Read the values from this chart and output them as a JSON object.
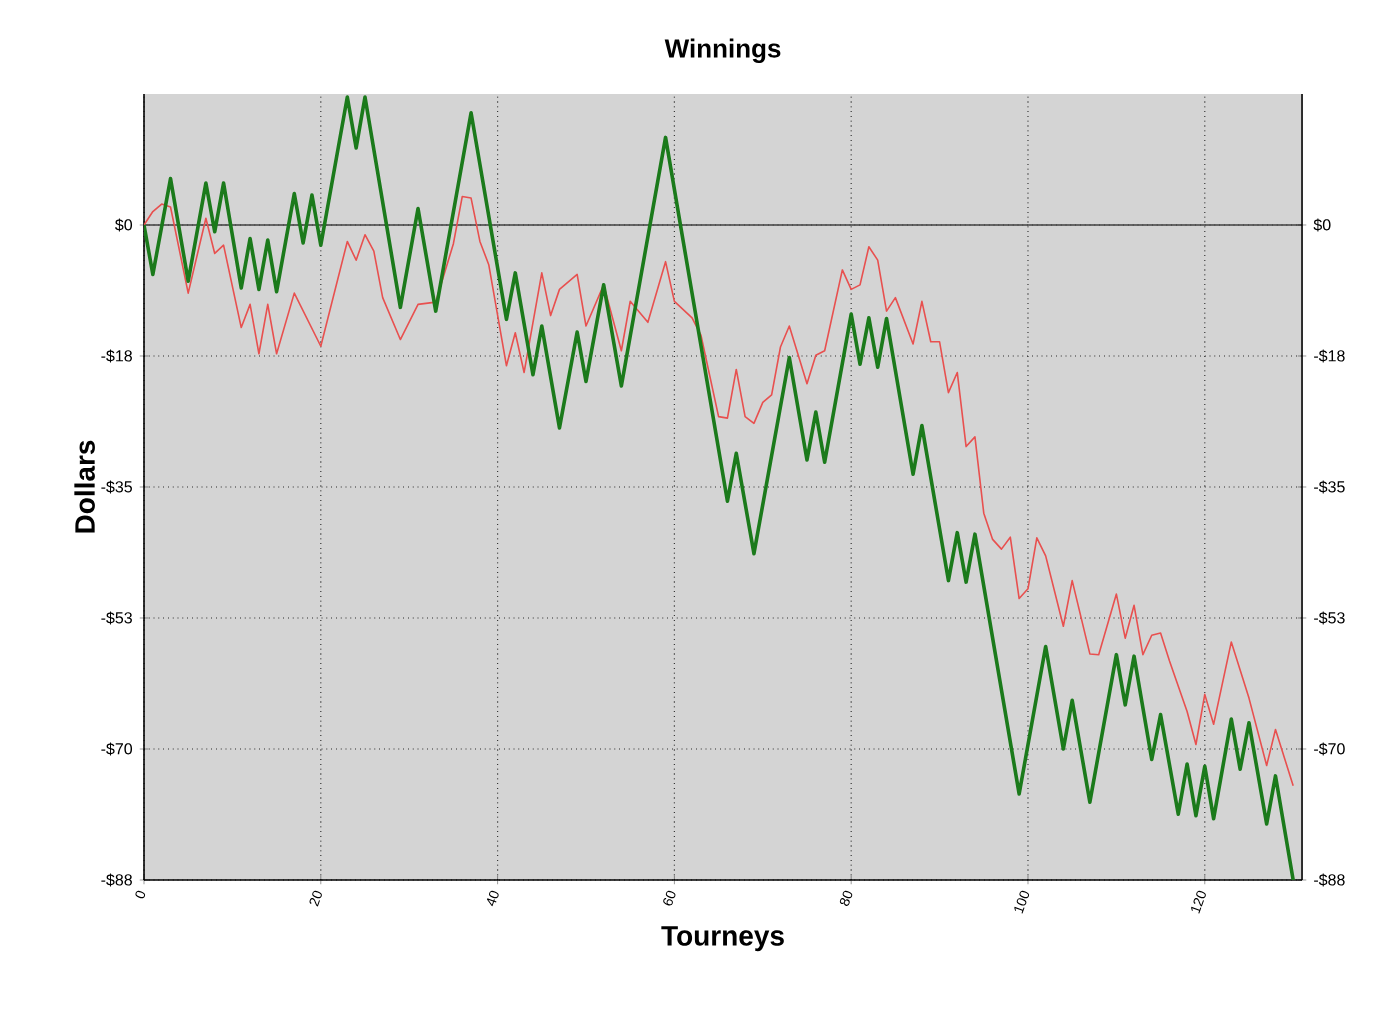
{
  "chart_data": {
    "type": "line",
    "title": "Winnings",
    "xlabel": "Tourneys",
    "ylabel": "Dollars",
    "xlim": [
      0,
      131
    ],
    "xticks": [
      0,
      20,
      40,
      60,
      80,
      100,
      120
    ],
    "ylim": [
      -87.5,
      17.5
    ],
    "yticks": [
      {
        "value": -87.5,
        "label": "-$88"
      },
      {
        "value": -70,
        "label": "-$70"
      },
      {
        "value": -52.5,
        "label": "-$53"
      },
      {
        "value": -35,
        "label": "-$35"
      },
      {
        "value": -17.5,
        "label": "-$18"
      },
      {
        "value": 0,
        "label": "$0"
      }
    ],
    "y2lim": [
      -87.5,
      17.5
    ],
    "y2ticks": [
      {
        "value": -87.5,
        "label": "-$88"
      },
      {
        "value": -70,
        "label": "-$70"
      },
      {
        "value": -52.5,
        "label": "-$53"
      },
      {
        "value": -35,
        "label": "-$35"
      },
      {
        "value": -17.5,
        "label": "-$18"
      },
      {
        "value": 0,
        "label": "$0"
      }
    ],
    "grid": true,
    "ref_lines": [
      {
        "axis": "y",
        "value": 0,
        "color": "#404040"
      }
    ],
    "series": [
      {
        "color": "#e8504f",
        "x": [
          0,
          1,
          2,
          3,
          5,
          7,
          8,
          9,
          11,
          12,
          13,
          14,
          15,
          17,
          20,
          23,
          24,
          25,
          26,
          27,
          29,
          31,
          33,
          35,
          36,
          37,
          38,
          39,
          41,
          42,
          43,
          45,
          46,
          47,
          49,
          50,
          52,
          54,
          55,
          57,
          59,
          60,
          62,
          63,
          65,
          66,
          67,
          68,
          69,
          70,
          71,
          72,
          73,
          75,
          76,
          77,
          79,
          80,
          81,
          82,
          83,
          84,
          85,
          87,
          88,
          89,
          90,
          91,
          92,
          93,
          94,
          95,
          96,
          97,
          98,
          99,
          100,
          101,
          102,
          104,
          105,
          107,
          108,
          110,
          111,
          112,
          113,
          114,
          115,
          116,
          118,
          119,
          120,
          121,
          123,
          125,
          127,
          128,
          130
        ],
        "values": [
          0,
          1.8,
          2.8,
          2.4,
          -9.1,
          0.9,
          -3.8,
          -2.7,
          -13.7,
          -10.6,
          -17.2,
          -10.6,
          -17.2,
          -9.1,
          -16.2,
          -2.2,
          -4.7,
          -1.3,
          -3.5,
          -9.7,
          -15.3,
          -10.6,
          -10.3,
          -2.5,
          3.8,
          3.6,
          -2.2,
          -5.3,
          -18.8,
          -14.4,
          -19.7,
          -6.4,
          -12.1,
          -8.6,
          -6.6,
          -13.5,
          -8.0,
          -16.8,
          -10.2,
          -13.0,
          -4.9,
          -10.2,
          -12.4,
          -14.7,
          -25.6,
          -25.8,
          -19.3,
          -25.6,
          -26.5,
          -23.7,
          -22.7,
          -16.3,
          -13.5,
          -21.2,
          -17.4,
          -16.8,
          -6.0,
          -8.6,
          -8.0,
          -2.9,
          -4.7,
          -11.5,
          -9.7,
          -15.9,
          -10.2,
          -15.6,
          -15.6,
          -22.4,
          -19.7,
          -29.6,
          -28.3,
          -38.5,
          -42.0,
          -43.3,
          -41.7,
          -49.9,
          -48.6,
          -41.8,
          -44.2,
          -53.6,
          -47.5,
          -57.3,
          -57.4,
          -49.3,
          -55.2,
          -50.8,
          -57.4,
          -54.8,
          -54.5,
          -58.2,
          -65.0,
          -69.4,
          -62.7,
          -66.7,
          -55.7,
          -63.2,
          -72.2,
          -67.4,
          -74.9
        ]
      },
      {
        "color": "#1b7a1b",
        "x": [
          0,
          1,
          3,
          5,
          7,
          8,
          9,
          11,
          12,
          13,
          14,
          15,
          17,
          18,
          19,
          20,
          23,
          24,
          25,
          29,
          31,
          33,
          37,
          41,
          42,
          44,
          45,
          47,
          49,
          50,
          52,
          54,
          59,
          66,
          67,
          69,
          73,
          75,
          76,
          77,
          80,
          81,
          82,
          83,
          84,
          87,
          88,
          91,
          92,
          93,
          94,
          99,
          102,
          104,
          105,
          107,
          110,
          111,
          112,
          114,
          115,
          117,
          118,
          119,
          120,
          121,
          123,
          124,
          125,
          127,
          128,
          130
        ],
        "values": [
          0,
          -6.6,
          6.2,
          -7.5,
          5.6,
          -0.9,
          5.6,
          -8.4,
          -1.8,
          -8.6,
          -2.0,
          -8.9,
          4.2,
          -2.4,
          4.0,
          -2.7,
          17.1,
          10.3,
          17.1,
          -11.0,
          2.2,
          -11.5,
          15.0,
          -12.6,
          -6.4,
          -20.0,
          -13.5,
          -27.1,
          -14.3,
          -20.9,
          -8.0,
          -21.5,
          11.7,
          -36.9,
          -30.5,
          -43.9,
          -17.7,
          -31.4,
          -25.0,
          -31.7,
          -11.9,
          -18.6,
          -12.4,
          -19.0,
          -12.5,
          -33.3,
          -26.8,
          -47.5,
          -41.1,
          -47.7,
          -41.3,
          -76.0,
          -56.3,
          -70.0,
          -63.5,
          -77.1,
          -57.4,
          -64.1,
          -57.6,
          -71.4,
          -65.4,
          -78.7,
          -72.0,
          -78.9,
          -72.3,
          -79.3,
          -66.0,
          -72.7,
          -66.5,
          -80.0,
          -73.6,
          -87.5
        ]
      }
    ]
  }
}
